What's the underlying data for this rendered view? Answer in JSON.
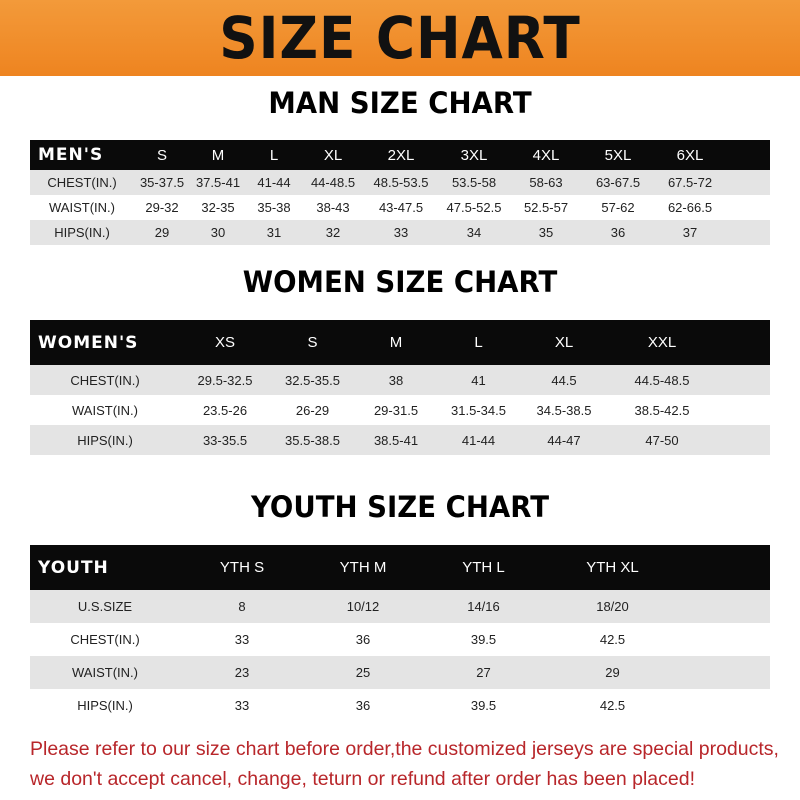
{
  "title": "SIZE CHART",
  "colors": {
    "banner": "#f08a24",
    "header_row": "#0a0a0a",
    "stripe": "#e4e4e4",
    "notice": "#b8262a"
  },
  "men": {
    "title": "MAN SIZE CHART",
    "header": [
      "MEN'S",
      "S",
      "M",
      "L",
      "XL",
      "2XL",
      "3XL",
      "4XL",
      "5XL",
      "6XL"
    ],
    "rows": [
      [
        "CHEST(IN.)",
        "35-37.5",
        "37.5-41",
        "41-44",
        "44-48.5",
        "48.5-53.5",
        "53.5-58",
        "58-63",
        "63-67.5",
        "67.5-72"
      ],
      [
        "WAIST(IN.)",
        "29-32",
        "32-35",
        "35-38",
        "38-43",
        "43-47.5",
        "47.5-52.5",
        "52.5-57",
        "57-62",
        "62-66.5"
      ],
      [
        "HIPS(IN.)",
        "29",
        "30",
        "31",
        "32",
        "33",
        "34",
        "35",
        "36",
        "37"
      ]
    ]
  },
  "women": {
    "title": "WOMEN SIZE CHART",
    "header": [
      "WOMEN'S",
      "XS",
      "S",
      "M",
      "L",
      "XL",
      "XXL"
    ],
    "rows": [
      [
        "CHEST(IN.)",
        "29.5-32.5",
        "32.5-35.5",
        "38",
        "41",
        "44.5",
        "44.5-48.5"
      ],
      [
        "WAIST(IN.)",
        "23.5-26",
        "26-29",
        "29-31.5",
        "31.5-34.5",
        "34.5-38.5",
        "38.5-42.5"
      ],
      [
        "HIPS(IN.)",
        "33-35.5",
        "35.5-38.5",
        "38.5-41",
        "41-44",
        "44-47",
        "47-50"
      ]
    ]
  },
  "youth": {
    "title": "YOUTH SIZE CHART",
    "header": [
      "YOUTH",
      "YTH S",
      "YTH M",
      "YTH L",
      "YTH XL"
    ],
    "rows": [
      [
        "U.S.SIZE",
        "8",
        "10/12",
        "14/16",
        "18/20"
      ],
      [
        "CHEST(IN.)",
        "33",
        "36",
        "39.5",
        "42.5"
      ],
      [
        "WAIST(IN.)",
        "23",
        "25",
        "27",
        "29"
      ],
      [
        "HIPS(IN.)",
        "33",
        "36",
        "39.5",
        "42.5"
      ]
    ]
  },
  "notice": {
    "line1": "Please refer to our size chart before order,the customized jerseys are special products,",
    "line2": "we don't accept cancel, change, teturn or refund after order has been placed!"
  }
}
